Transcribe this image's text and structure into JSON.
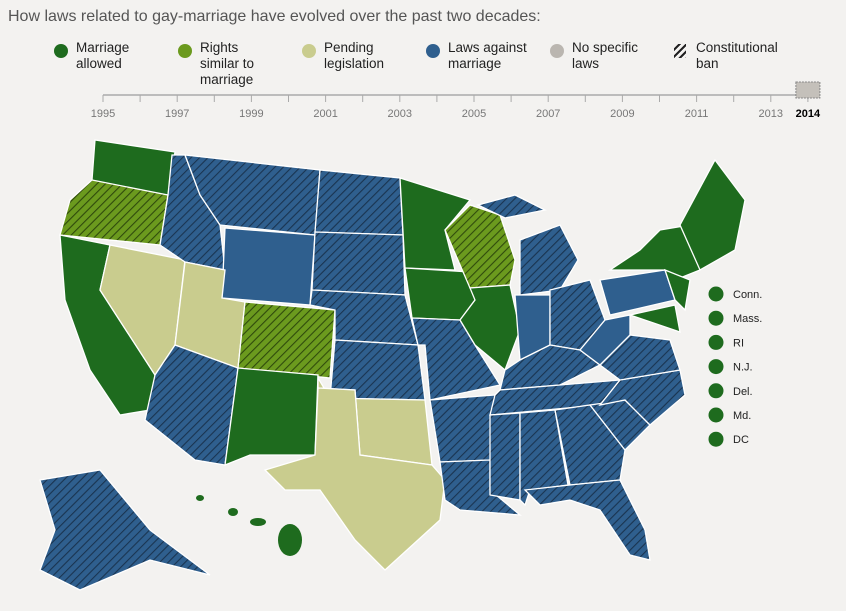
{
  "title": "How laws related to gay-marriage have evolved over the past two decades:",
  "legend": [
    {
      "label": "Marriage allowed",
      "color": "#1e6b1e"
    },
    {
      "label": "Rights similar to marriage",
      "color": "#6b9a1e"
    },
    {
      "label": "Pending legislation",
      "color": "#c9cc8e"
    },
    {
      "label": "Laws against marriage",
      "color": "#2f5f8e"
    },
    {
      "label": "No specific laws",
      "color": "#bab6b0"
    },
    {
      "label": "Constitutional ban"
    }
  ],
  "timeline": {
    "years": [
      1995,
      1997,
      1999,
      2001,
      2003,
      2005,
      2007,
      2009,
      2011,
      2013
    ],
    "selected": 2014
  },
  "small_states": [
    "Conn.",
    "Mass.",
    "RI",
    "N.J.",
    "Del.",
    "Md.",
    "DC"
  ]
}
